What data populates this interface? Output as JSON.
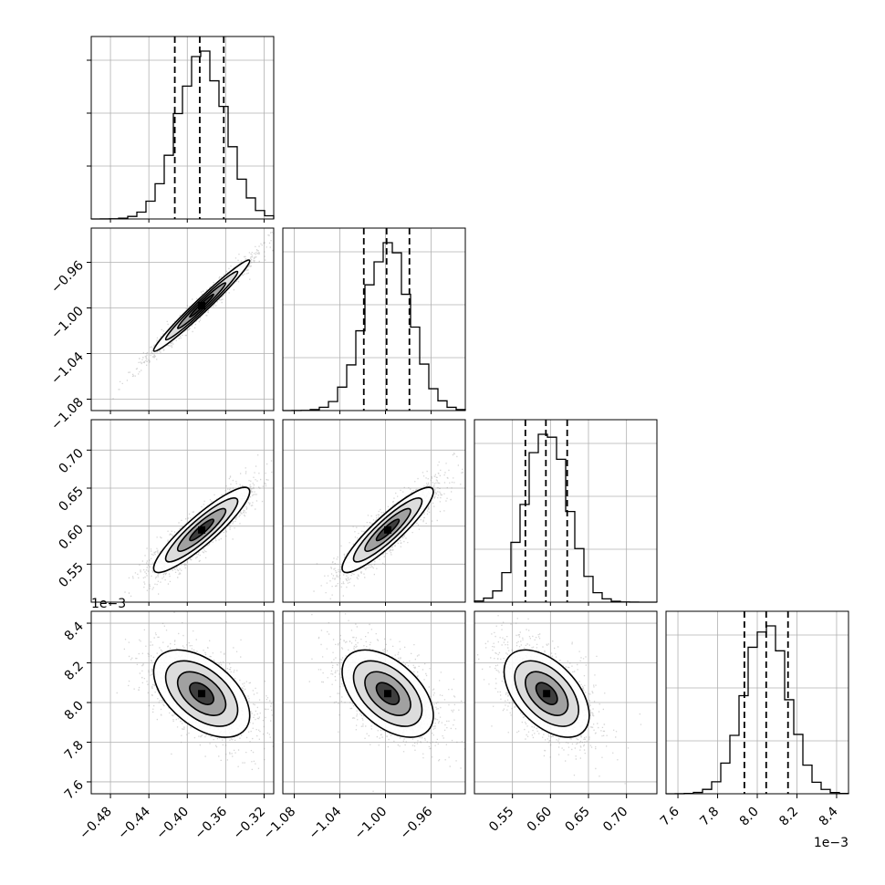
{
  "chart_data": {
    "type": "corner",
    "parameters": [
      {
        "range": [
          -0.5,
          -0.31
        ],
        "ticks": [
          -0.48,
          -0.44,
          -0.4,
          -0.36,
          -0.32
        ],
        "tick_labels": [
          "−0.48",
          "−0.44",
          "−0.40",
          "−0.36",
          "−0.32"
        ],
        "mean": -0.385,
        "sd": 0.025,
        "quantiles": [
          -0.413,
          -0.387,
          -0.362
        ]
      },
      {
        "range": [
          -1.09,
          -0.93
        ],
        "ticks": [
          -1.08,
          -1.04,
          -1.0,
          -0.96
        ],
        "tick_labels": [
          "−1.08",
          "−1.04",
          "−1.00",
          "−0.96"
        ],
        "mean": -0.998,
        "sd": 0.02,
        "quantiles": [
          -1.019,
          -0.999,
          -0.979
        ]
      },
      {
        "range": [
          0.5,
          0.74
        ],
        "ticks": [
          0.55,
          0.6,
          0.65,
          0.7
        ],
        "tick_labels": [
          "0.55",
          "0.60",
          "0.65",
          "0.70"
        ],
        "mean": 0.595,
        "sd": 0.028,
        "quantiles": [
          0.567,
          0.594,
          0.622
        ]
      },
      {
        "range": [
          7.54,
          8.46
        ],
        "ticks": [
          7.6,
          7.8,
          8.0,
          8.2,
          8.4
        ],
        "tick_labels": [
          "7.6",
          "7.8",
          "8.0",
          "8.2",
          "8.4"
        ],
        "mean": 8.045,
        "sd": 0.11,
        "quantiles": [
          7.935,
          8.045,
          8.155
        ]
      }
    ],
    "correlations": {
      "0-1": 0.98,
      "0-2": 0.9,
      "0-3": -0.5,
      "1-2": 0.9,
      "1-3": -0.5,
      "2-3": -0.5
    },
    "offset_labels": {
      "y_param3": "1e−3",
      "x_param3": "1e−3"
    },
    "histogram_bins": 20,
    "grid": true,
    "colors": {
      "line": "#000000",
      "grid": "#b0b0b0",
      "points": "#888888"
    }
  }
}
